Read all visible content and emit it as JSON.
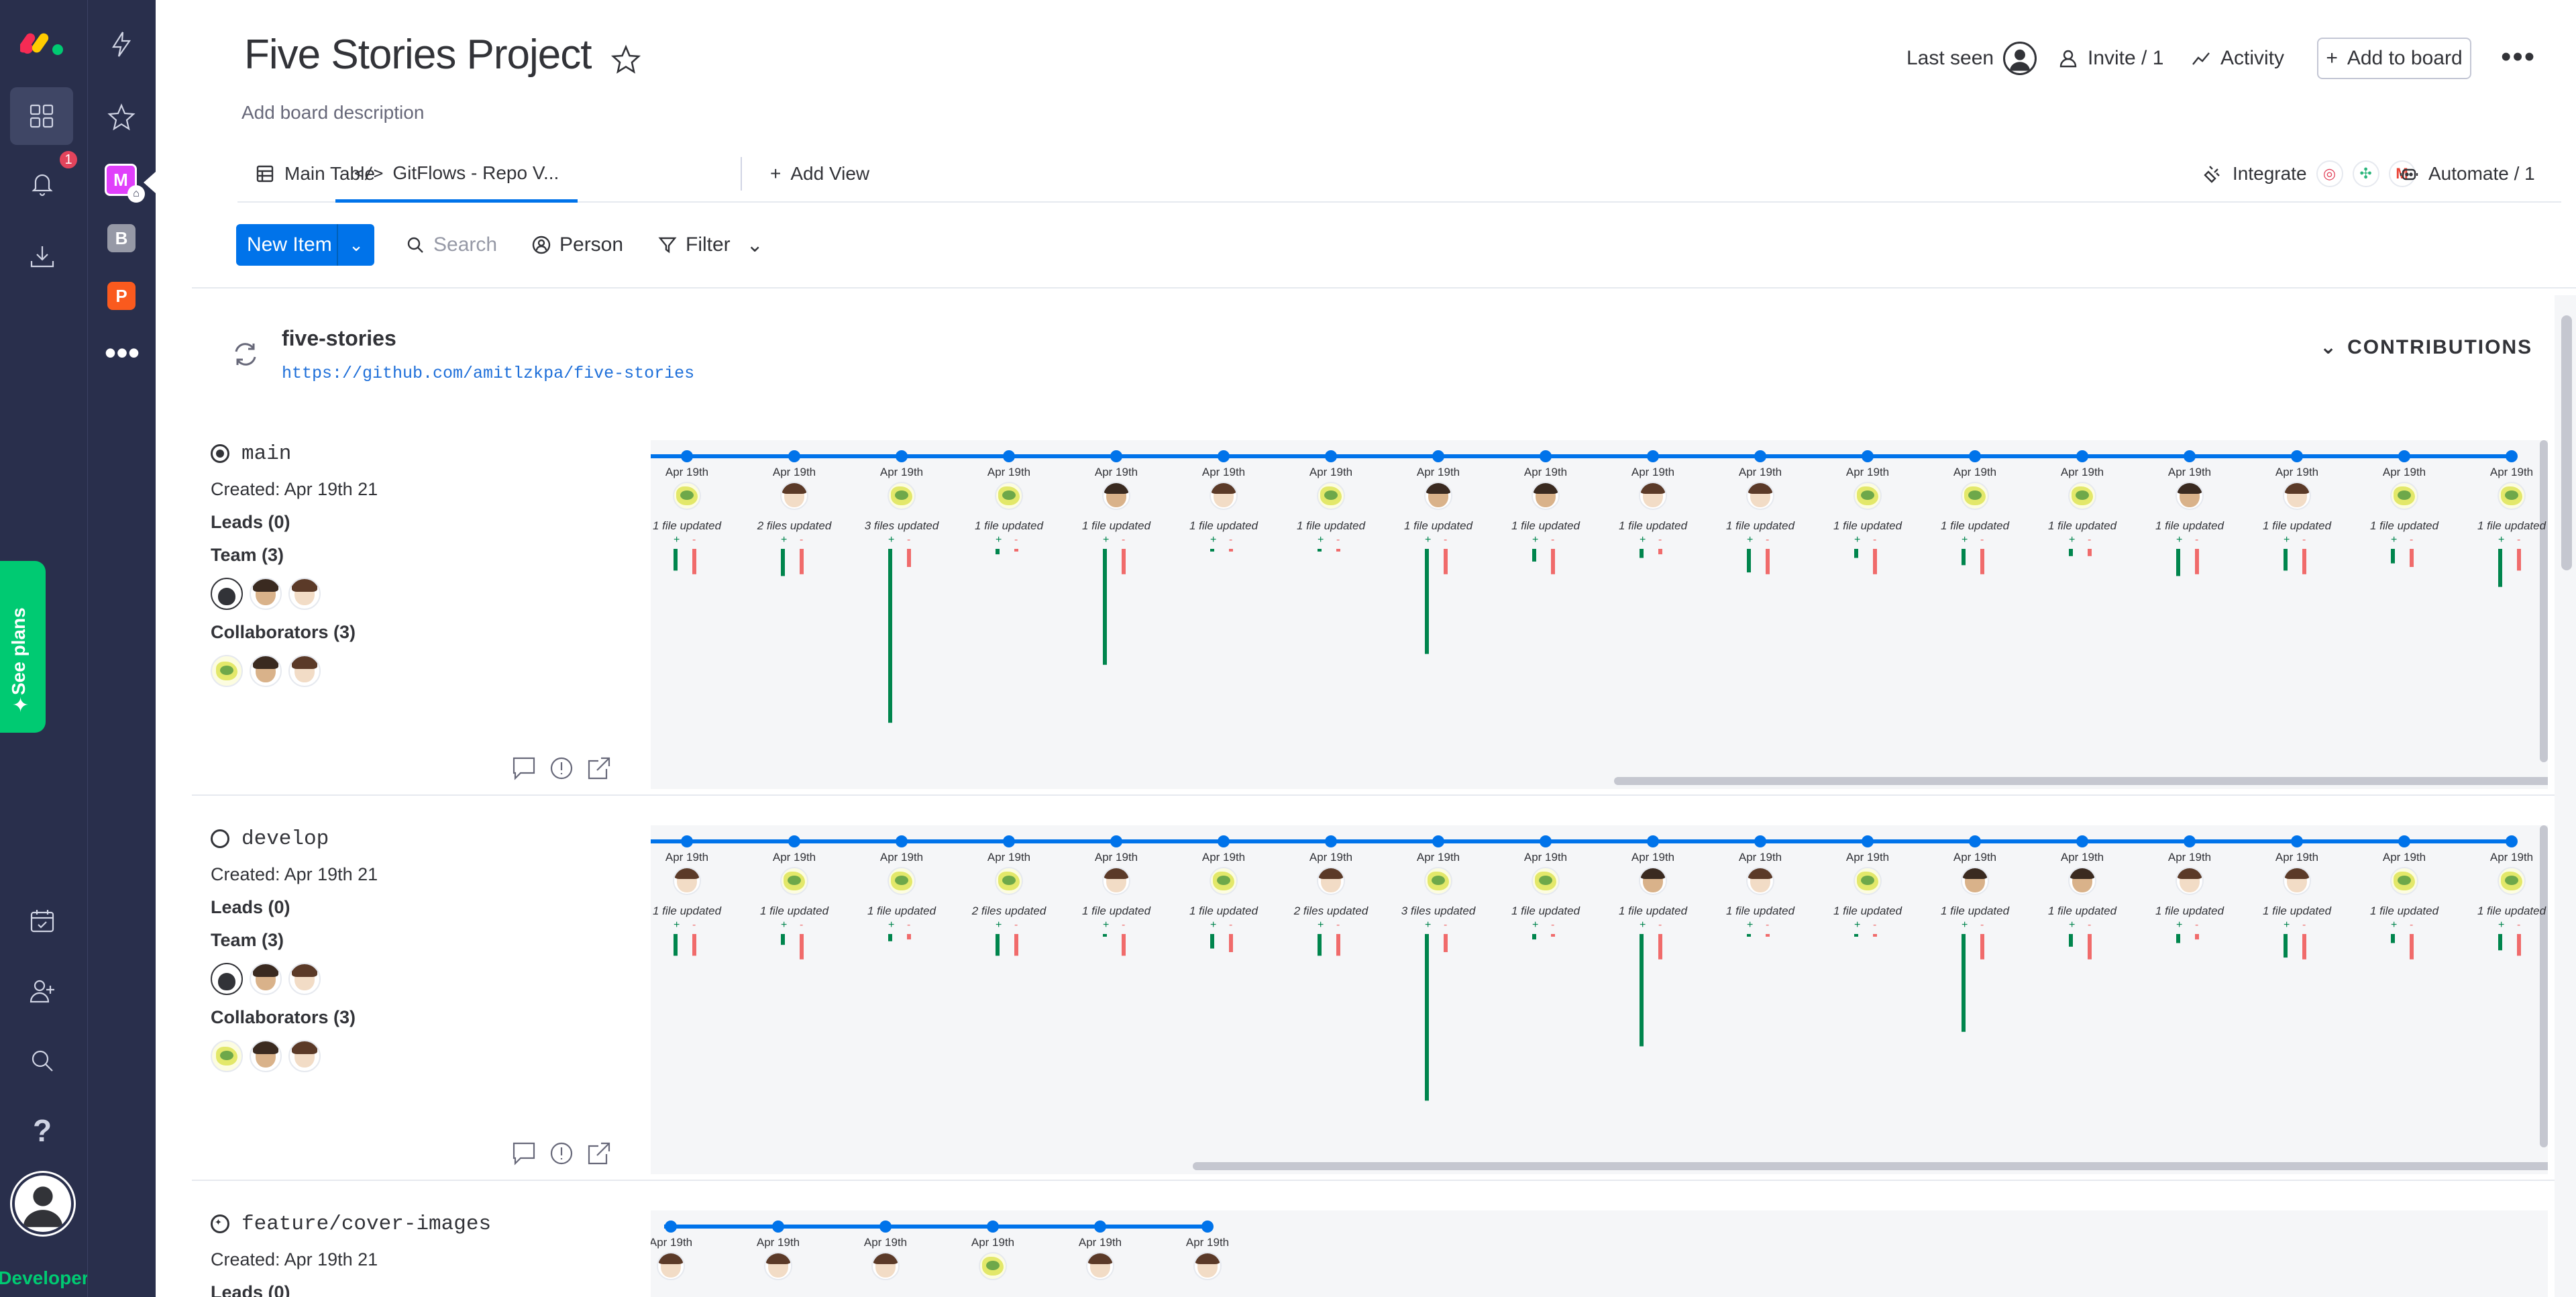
{
  "rail": {
    "notifications_badge": "1",
    "developer_label": "Developer",
    "see_plans_label": "See plans",
    "workspaces": [
      {
        "letter": "M",
        "color": "#e040fb"
      },
      {
        "letter": "B",
        "color": "#9699a6"
      },
      {
        "letter": "P",
        "color": "#fa5a1e"
      }
    ]
  },
  "header": {
    "title": "Five Stories Project",
    "description": "Add board description",
    "last_seen": "Last seen",
    "invite": "Invite / 1",
    "activity": "Activity",
    "add_to_board": "Add to board"
  },
  "tabs": {
    "main_table": "Main Table",
    "gitflows": "GitFlows - Repo V...",
    "add_view": "Add View",
    "integrate": "Integrate",
    "automate": "Automate / 1"
  },
  "toolbar": {
    "new_item": "New Item",
    "search_placeholder": "Search",
    "person": "Person",
    "filter": "Filter"
  },
  "repo": {
    "name": "five-stories",
    "url": "https://github.com/amitlzkpa/five-stories",
    "contributions": "CONTRIBUTIONS"
  },
  "branches": [
    {
      "name": "main",
      "created": "Created: Apr 19th 21",
      "leads": "Leads (0)",
      "team": "Team (3)",
      "collaborators": "Collaborators (3)",
      "team_avatars": [
        "dark",
        "brown",
        "light"
      ],
      "collab_avatars": [
        "fly",
        "brown",
        "light"
      ],
      "commits": [
        {
          "date": "Apr 19th",
          "avatar": "fly",
          "files": "1 file updated",
          "add": 12,
          "del": 14
        },
        {
          "date": "Apr 19th",
          "avatar": "light",
          "files": "2 files updated",
          "add": 15,
          "del": 14
        },
        {
          "date": "Apr 19th",
          "avatar": "fly",
          "files": "3 files updated",
          "add": 96,
          "del": 10
        },
        {
          "date": "Apr 19th",
          "avatar": "fly",
          "files": "1 file updated",
          "add": 3,
          "del": 1
        },
        {
          "date": "Apr 19th",
          "avatar": "brown",
          "files": "1 file updated",
          "add": 64,
          "del": 14
        },
        {
          "date": "Apr 19th",
          "avatar": "light",
          "files": "1 file updated",
          "add": 1,
          "del": 1
        },
        {
          "date": "Apr 19th",
          "avatar": "fly",
          "files": "1 file updated",
          "add": 1,
          "del": 1
        },
        {
          "date": "Apr 19th",
          "avatar": "brown",
          "files": "1 file updated",
          "add": 58,
          "del": 14
        },
        {
          "date": "Apr 19th",
          "avatar": "brown",
          "files": "1 file updated",
          "add": 7,
          "del": 14
        },
        {
          "date": "Apr 19th",
          "avatar": "light",
          "files": "1 file updated",
          "add": 5,
          "del": 3
        },
        {
          "date": "Apr 19th",
          "avatar": "light",
          "files": "1 file updated",
          "add": 13,
          "del": 14
        },
        {
          "date": "Apr 19th",
          "avatar": "fly",
          "files": "1 file updated",
          "add": 5,
          "del": 14
        },
        {
          "date": "Apr 19th",
          "avatar": "fly",
          "files": "1 file updated",
          "add": 9,
          "del": 14
        },
        {
          "date": "Apr 19th",
          "avatar": "fly",
          "files": "1 file updated",
          "add": 4,
          "del": 4
        },
        {
          "date": "Apr 19th",
          "avatar": "brown",
          "files": "1 file updated",
          "add": 15,
          "del": 14
        },
        {
          "date": "Apr 19th",
          "avatar": "light",
          "files": "1 file updated",
          "add": 12,
          "del": 14
        },
        {
          "date": "Apr 19th",
          "avatar": "fly",
          "files": "1 file updated",
          "add": 8,
          "del": 10
        },
        {
          "date": "Apr 19th",
          "avatar": "fly",
          "files": "1 file updated",
          "add": 21,
          "del": 12
        }
      ]
    },
    {
      "name": "develop",
      "created": "Created: Apr 19th 21",
      "leads": "Leads (0)",
      "team": "Team (3)",
      "collaborators": "Collaborators (3)",
      "team_avatars": [
        "dark",
        "brown",
        "light"
      ],
      "collab_avatars": [
        "fly",
        "brown",
        "light"
      ],
      "commits": [
        {
          "date": "Apr 19th",
          "avatar": "light",
          "files": "1 file updated",
          "add": 12,
          "del": 12
        },
        {
          "date": "Apr 19th",
          "avatar": "fly",
          "files": "1 file updated",
          "add": 6,
          "del": 14
        },
        {
          "date": "Apr 19th",
          "avatar": "fly",
          "files": "1 file updated",
          "add": 4,
          "del": 3
        },
        {
          "date": "Apr 19th",
          "avatar": "fly",
          "files": "2 files updated",
          "add": 12,
          "del": 12
        },
        {
          "date": "Apr 19th",
          "avatar": "light",
          "files": "1 file updated",
          "add": 1,
          "del": 12
        },
        {
          "date": "Apr 19th",
          "avatar": "fly",
          "files": "1 file updated",
          "add": 8,
          "del": 10
        },
        {
          "date": "Apr 19th",
          "avatar": "light",
          "files": "2 files updated",
          "add": 12,
          "del": 12
        },
        {
          "date": "Apr 19th",
          "avatar": "fly",
          "files": "3 files updated",
          "add": 92,
          "del": 10
        },
        {
          "date": "Apr 19th",
          "avatar": "fly",
          "files": "1 file updated",
          "add": 3,
          "del": 1
        },
        {
          "date": "Apr 19th",
          "avatar": "brown",
          "files": "1 file updated",
          "add": 62,
          "del": 14
        },
        {
          "date": "Apr 19th",
          "avatar": "light",
          "files": "1 file updated",
          "add": 1,
          "del": 1
        },
        {
          "date": "Apr 19th",
          "avatar": "fly",
          "files": "1 file updated",
          "add": 1,
          "del": 1
        },
        {
          "date": "Apr 19th",
          "avatar": "brown",
          "files": "1 file updated",
          "add": 54,
          "del": 14
        },
        {
          "date": "Apr 19th",
          "avatar": "brown",
          "files": "1 file updated",
          "add": 7,
          "del": 14
        },
        {
          "date": "Apr 19th",
          "avatar": "light",
          "files": "1 file updated",
          "add": 5,
          "del": 3
        },
        {
          "date": "Apr 19th",
          "avatar": "light",
          "files": "1 file updated",
          "add": 13,
          "del": 14
        },
        {
          "date": "Apr 19th",
          "avatar": "fly",
          "files": "1 file updated",
          "add": 5,
          "del": 14
        },
        {
          "date": "Apr 19th",
          "avatar": "fly",
          "files": "1 file updated",
          "add": 9,
          "del": 12
        }
      ]
    },
    {
      "name": "feature/cover-images",
      "created": "Created: Apr 19th 21",
      "leads": "Leads (0)",
      "commits": [
        {
          "date": "Apr 19th",
          "avatar": "light"
        },
        {
          "date": "Apr 19th",
          "avatar": "light"
        },
        {
          "date": "Apr 19th",
          "avatar": "light"
        },
        {
          "date": "Apr 19th",
          "avatar": "fly"
        },
        {
          "date": "Apr 19th",
          "avatar": "light"
        },
        {
          "date": "Apr 19th",
          "avatar": "light"
        }
      ]
    }
  ],
  "colors": {
    "accent": "#0073ea",
    "rail": "#292f4c",
    "add": "#00854d",
    "del": "#f06b6b",
    "plans": "#00ca72"
  }
}
